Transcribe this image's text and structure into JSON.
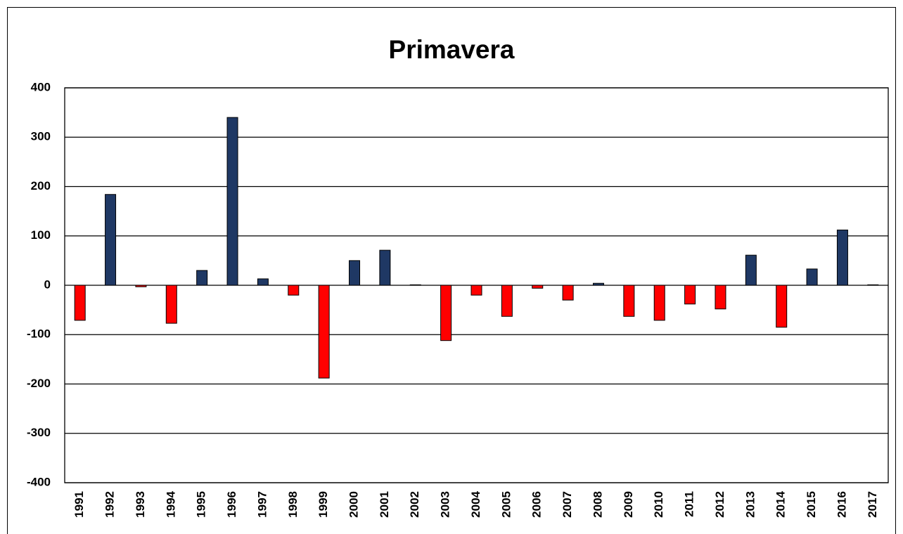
{
  "chart_data": {
    "type": "bar",
    "title": "Primavera",
    "categories": [
      "1991",
      "1992",
      "1993",
      "1994",
      "1995",
      "1996",
      "1997",
      "1998",
      "1999",
      "2000",
      "2001",
      "2002",
      "2003",
      "2004",
      "2005",
      "2006",
      "2007",
      "2008",
      "2009",
      "2010",
      "2011",
      "2012",
      "2013",
      "2014",
      "2015",
      "2016",
      "2017"
    ],
    "values": [
      -71,
      184,
      -3,
      -77,
      30,
      340,
      13,
      -20,
      -188,
      50,
      71,
      1,
      -112,
      -20,
      -63,
      -6,
      -30,
      4,
      -63,
      -71,
      -38,
      -48,
      61,
      -85,
      33,
      112,
      1
    ],
    "positive_color": "#1f3864",
    "negative_color": "#ff0000",
    "ylim": [
      -400,
      400
    ],
    "yticks": [
      -400,
      -300,
      -200,
      -100,
      0,
      100,
      200,
      300,
      400
    ],
    "grid": true
  }
}
